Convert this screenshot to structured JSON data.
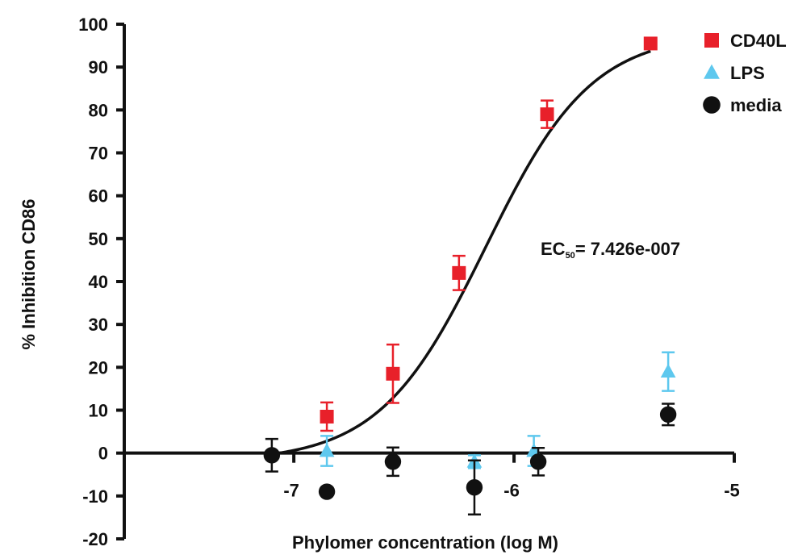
{
  "chart_data": {
    "type": "scatter",
    "xlabel": "Phylomer concentration (log M)",
    "ylabel": "% Inhibition CD86",
    "xlim": [
      -7.77,
      -5
    ],
    "ylim": [
      -20,
      100
    ],
    "x_ticks": [
      -7,
      -6,
      -5
    ],
    "x_tick_labels": [
      "-7",
      "-6",
      "-5"
    ],
    "y_ticks": [
      -20,
      -10,
      0,
      10,
      20,
      30,
      40,
      50,
      60,
      70,
      80,
      90,
      100
    ],
    "y_tick_labels": [
      "-20",
      "-10",
      "0",
      "10",
      "20",
      "30",
      "40",
      "50",
      "60",
      "70",
      "80",
      "90",
      "100"
    ],
    "legend_position": "top-right",
    "annotation": {
      "prefix": "EC",
      "subscript": "50",
      "value_text": "= 7.426e-007"
    },
    "series": [
      {
        "name": "CD40L",
        "marker": "square",
        "color": "#e8202a",
        "fit_curve": true,
        "curve_color": "#111111",
        "points": [
          {
            "x": -6.85,
            "y": 8.5,
            "err": 3.3
          },
          {
            "x": -6.55,
            "y": 18.5,
            "err": 6.8
          },
          {
            "x": -6.25,
            "y": 42,
            "err": 4.0
          },
          {
            "x": -5.85,
            "y": 79,
            "err": 3.2
          },
          {
            "x": -5.38,
            "y": 95.5,
            "err": 0
          }
        ]
      },
      {
        "name": "LPS",
        "marker": "triangle",
        "color": "#5ec8ee",
        "fit_curve": false,
        "points": [
          {
            "x": -6.85,
            "y": 0.5,
            "err": 3.5
          },
          {
            "x": -6.18,
            "y": -2,
            "err": 1.5
          },
          {
            "x": -5.91,
            "y": 0.5,
            "err": 3.5
          },
          {
            "x": -5.3,
            "y": 19,
            "err": 4.5
          }
        ]
      },
      {
        "name": "media",
        "marker": "circle",
        "color": "#111111",
        "fit_curve": false,
        "points": [
          {
            "x": -7.1,
            "y": -0.5,
            "err": 3.8
          },
          {
            "x": -6.85,
            "y": -9,
            "err": 0
          },
          {
            "x": -6.55,
            "y": -2,
            "err": 3.3
          },
          {
            "x": -6.18,
            "y": -8,
            "err": 6.3
          },
          {
            "x": -5.89,
            "y": -2,
            "err": 3.2
          },
          {
            "x": -5.3,
            "y": 9,
            "err": 2.5
          }
        ]
      }
    ],
    "curve": {
      "bottom": -2,
      "top": 98,
      "logEC50": -6.129,
      "hill": 1.8,
      "x_start": -7.1,
      "x_end": -5.38
    }
  }
}
